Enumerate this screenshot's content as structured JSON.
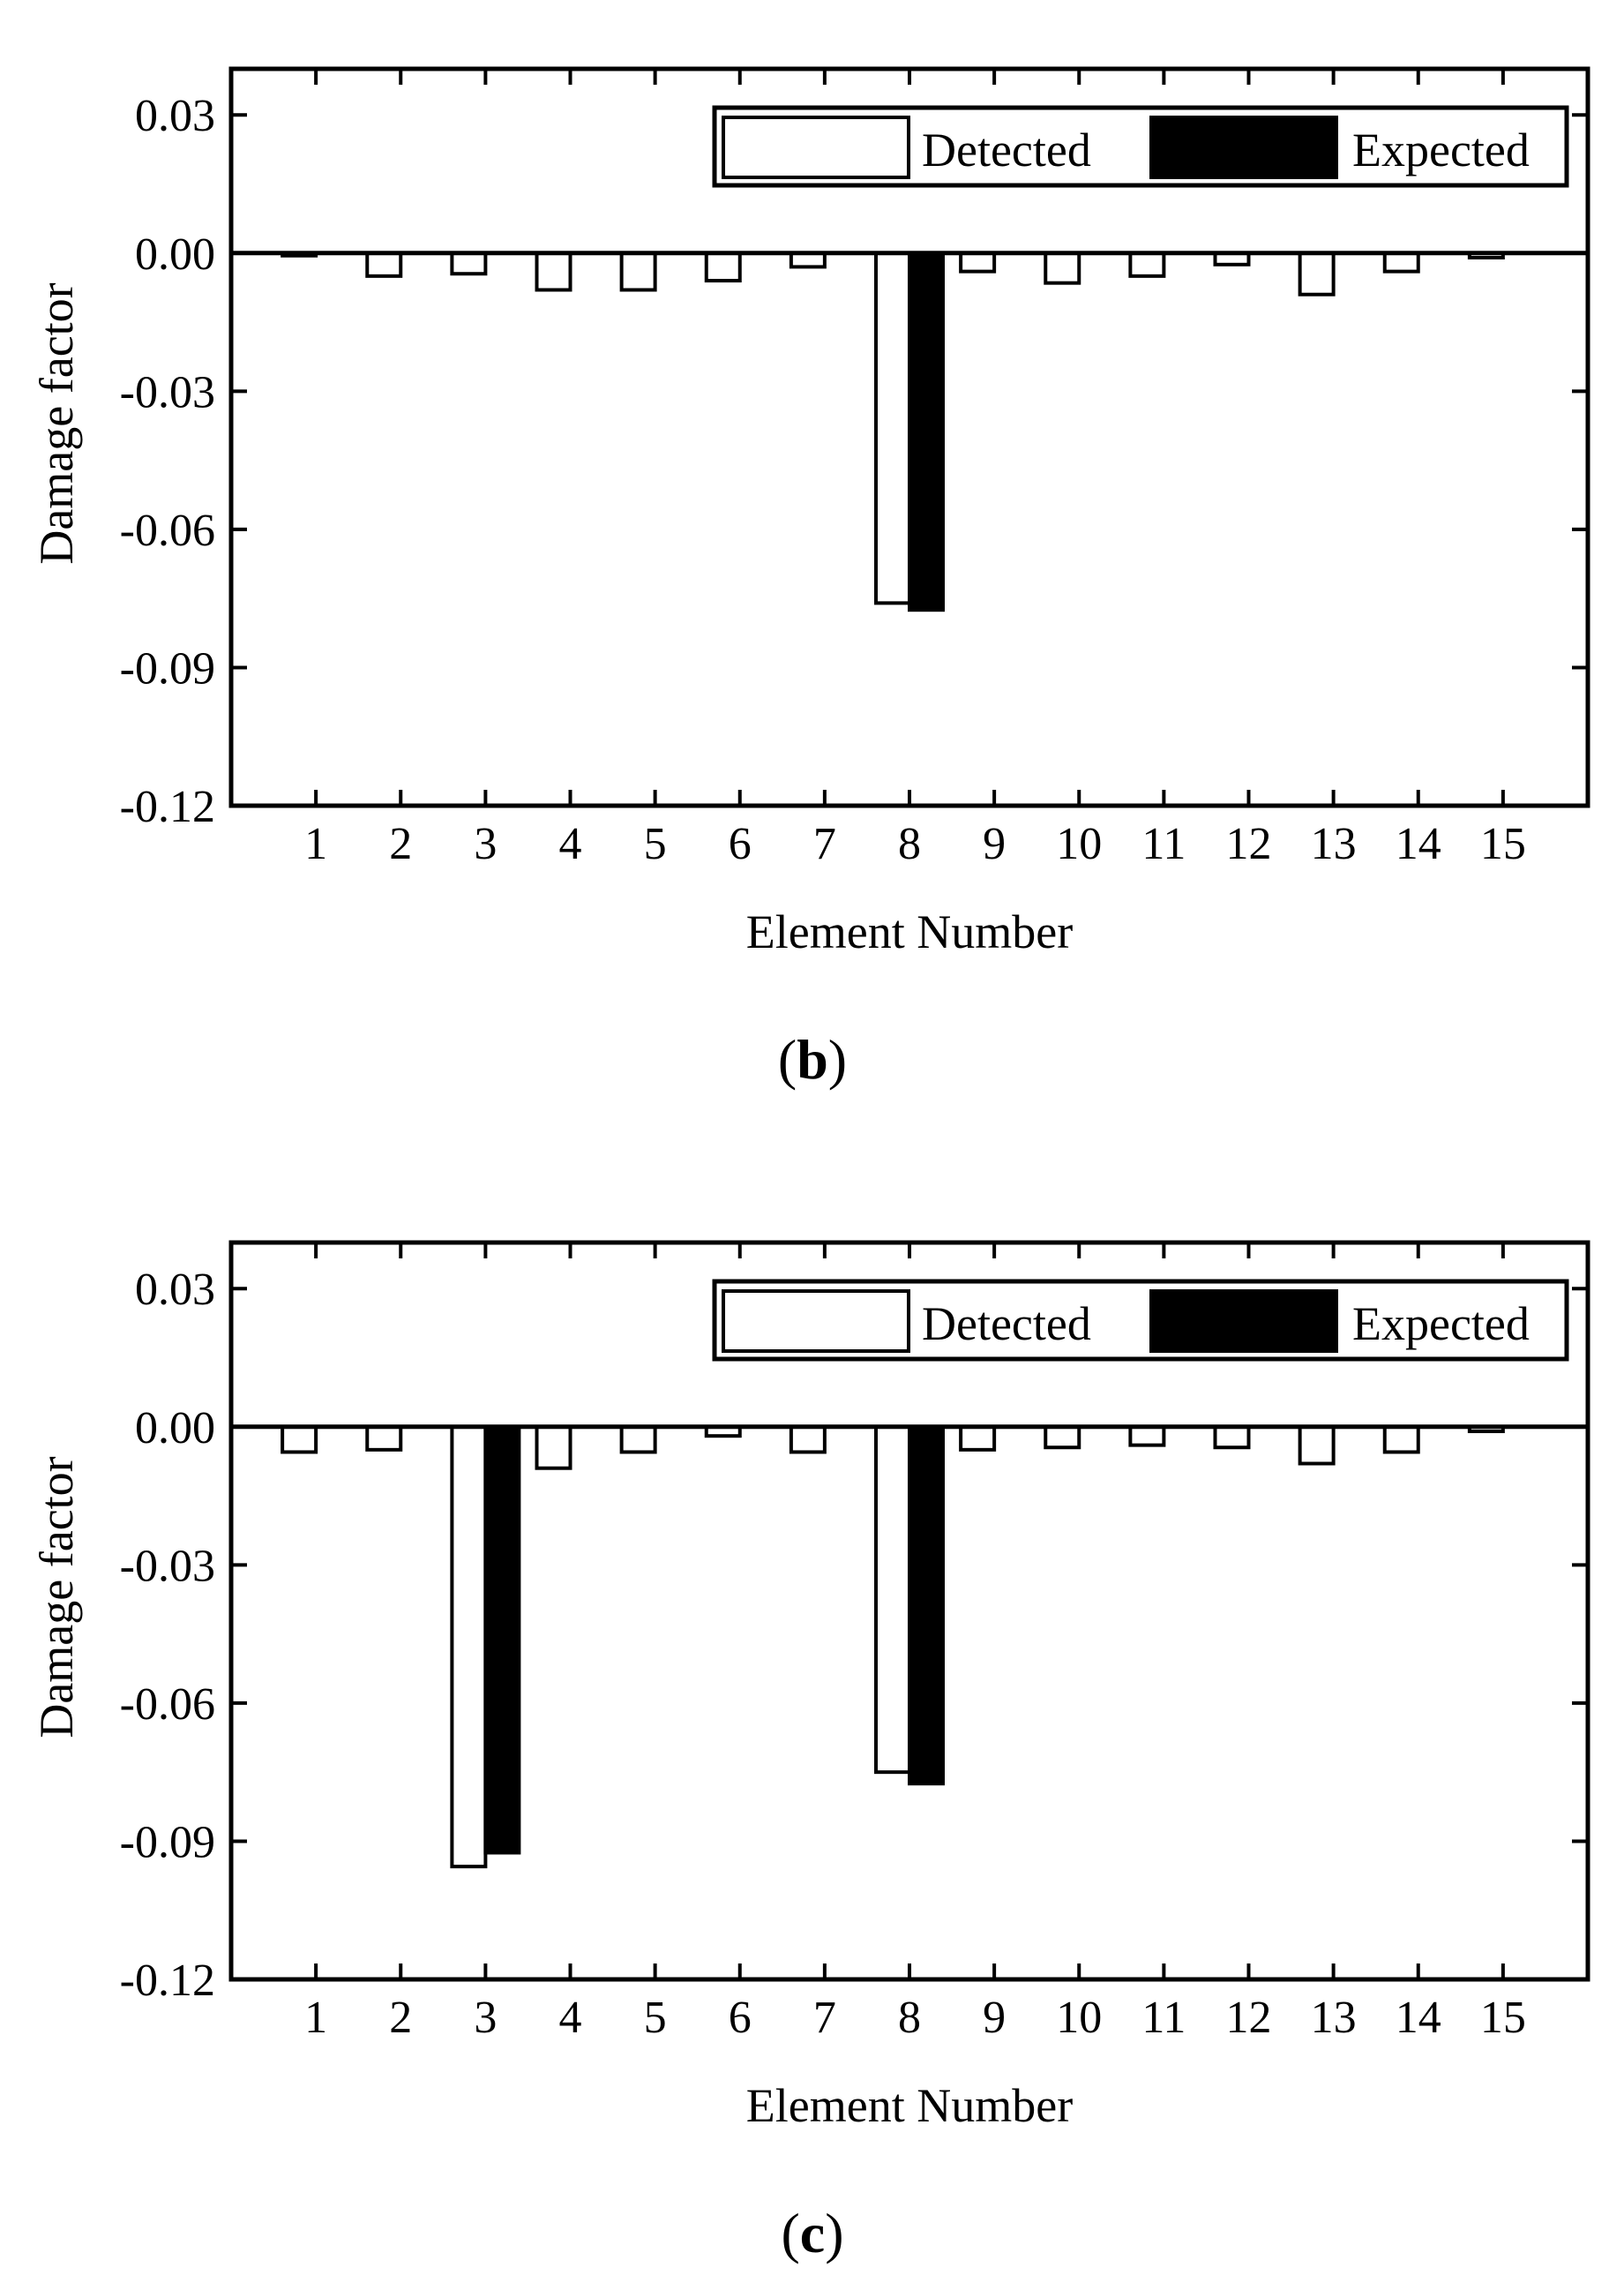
{
  "chart_data": [
    {
      "type": "bar",
      "panel_label": "b",
      "xlabel": "Element Number",
      "ylabel": "Damage factor",
      "ylim": [
        -0.12,
        0.04
      ],
      "yticks": [
        0.03,
        0.0,
        -0.03,
        -0.06,
        -0.09,
        -0.12
      ],
      "ytick_labels": [
        "0.03",
        "0.00",
        "-0.03",
        "-0.06",
        "-0.09",
        "-0.12"
      ],
      "categories": [
        "1",
        "2",
        "3",
        "4",
        "5",
        "6",
        "7",
        "8",
        "9",
        "10",
        "11",
        "12",
        "13",
        "14",
        "15"
      ],
      "series": [
        {
          "name": "Detected",
          "color": "#ffffff",
          "values": [
            -0.0005,
            -0.005,
            -0.0045,
            -0.008,
            -0.008,
            -0.006,
            -0.003,
            -0.076,
            -0.004,
            -0.0065,
            -0.005,
            -0.0025,
            -0.009,
            -0.004,
            -0.001
          ]
        },
        {
          "name": "Expected",
          "color": "#000000",
          "values": [
            0,
            0,
            0,
            0,
            0,
            0,
            0,
            -0.0775,
            0,
            0,
            0,
            0,
            0,
            0,
            0
          ]
        }
      ],
      "legend": "top-right",
      "grid": false
    },
    {
      "type": "bar",
      "panel_label": "c",
      "xlabel": "Element Number",
      "ylabel": "Damage factor",
      "ylim": [
        -0.12,
        0.04
      ],
      "yticks": [
        0.03,
        0.0,
        -0.03,
        -0.06,
        -0.09,
        -0.12
      ],
      "ytick_labels": [
        "0.03",
        "0.00",
        "-0.03",
        "-0.06",
        "-0.09",
        "-0.12"
      ],
      "categories": [
        "1",
        "2",
        "3",
        "4",
        "5",
        "6",
        "7",
        "8",
        "9",
        "10",
        "11",
        "12",
        "13",
        "14",
        "15"
      ],
      "series": [
        {
          "name": "Detected",
          "color": "#ffffff",
          "values": [
            -0.0055,
            -0.005,
            -0.0955,
            -0.009,
            -0.0055,
            -0.002,
            -0.0055,
            -0.075,
            -0.005,
            -0.0045,
            -0.004,
            -0.0045,
            -0.008,
            -0.0055,
            -0.001
          ]
        },
        {
          "name": "Expected",
          "color": "#000000",
          "values": [
            0,
            0,
            -0.0925,
            0,
            0,
            0,
            0,
            -0.0775,
            0,
            0,
            0,
            0,
            0,
            0,
            0
          ]
        }
      ],
      "legend": "top-right",
      "grid": false
    }
  ]
}
